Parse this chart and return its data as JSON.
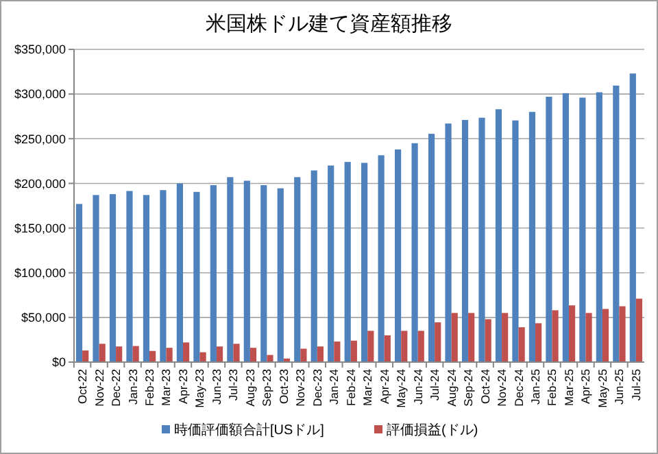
{
  "chart_data": {
    "type": "bar",
    "title": "米国株ドル建て資産額推移",
    "categories": [
      "Oct-22",
      "Nov-22",
      "Dec-22",
      "Jan-23",
      "Feb-23",
      "Mar-23",
      "Apr-23",
      "May-23",
      "Jun-23",
      "Jul-23",
      "Aug-23",
      "Sep-23",
      "Oct-23",
      "Nov-23",
      "Dec-23",
      "Jan-24",
      "Feb-24",
      "Mar-24",
      "Apr-24",
      "May-24",
      "Jun-24",
      "Jul-24",
      "Aug-24",
      "Sep-24",
      "Oct-24",
      "Nov-24",
      "Dec-24",
      "Jan-25",
      "Feb-25",
      "Mar-25",
      "Apr-25",
      "May-25",
      "Jun-25",
      "Jul-25"
    ],
    "series": [
      {
        "name": "時価評価額合計[USドル]",
        "color": "#4f81bd",
        "values": [
          177000,
          187000,
          188000,
          191500,
          187000,
          192500,
          200000,
          190500,
          198000,
          207000,
          203000,
          198000,
          194500,
          207000,
          214500,
          220000,
          224000,
          223000,
          231500,
          238000,
          245000,
          255500,
          267000,
          271000,
          273500,
          283000,
          270500,
          280000,
          297000,
          301000,
          296000,
          302000,
          309500,
          323000
        ]
      },
      {
        "name": "評価損益(ドル)",
        "color": "#c0504d",
        "values": [
          13000,
          20500,
          17500,
          18000,
          12500,
          16000,
          22000,
          11000,
          17500,
          20500,
          16000,
          8000,
          4000,
          15000,
          17500,
          23000,
          24000,
          35000,
          30000,
          35000,
          35000,
          44500,
          55000,
          55000,
          48000,
          55000,
          39000,
          43500,
          58000,
          63500,
          55000,
          59500,
          62500,
          71000
        ]
      }
    ],
    "ylim": [
      0,
      350000
    ],
    "yticks": [
      {
        "value": 0,
        "label": "$0"
      },
      {
        "value": 50000,
        "label": "$50,000"
      },
      {
        "value": 100000,
        "label": "$100,000"
      },
      {
        "value": 150000,
        "label": "$150,000"
      },
      {
        "value": 200000,
        "label": "$200,000"
      },
      {
        "value": 250000,
        "label": "$250,000"
      },
      {
        "value": 300000,
        "label": "$300,000"
      },
      {
        "value": 350000,
        "label": "$350,000"
      }
    ],
    "grid": "y",
    "legend": "bottom"
  }
}
